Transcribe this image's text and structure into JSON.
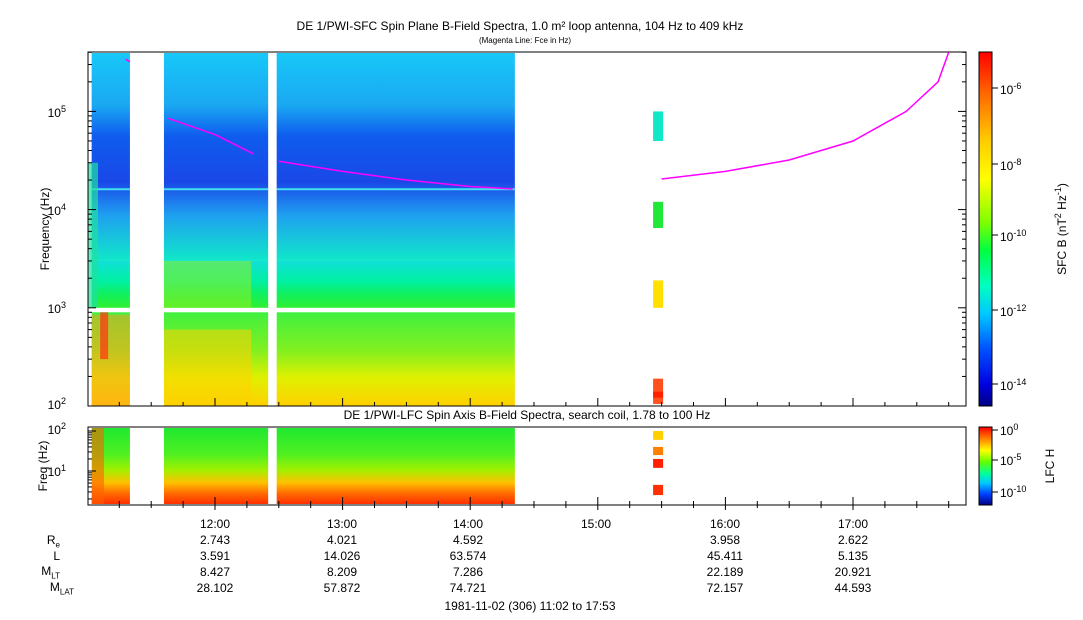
{
  "top_panel": {
    "title": "DE 1/PWI-SFC  Spin Plane B-Field Spectra, 1.0 m² loop antenna, 104 Hz to 409 kHz",
    "subtitle": "(Magenta Line: Fce in Hz)",
    "ylabel": "Frequency (Hz)",
    "yticks": [
      "10",
      "10",
      "10",
      "10"
    ],
    "ytick_exps": [
      "2",
      "3",
      "4",
      "5"
    ],
    "colorbar_label": "SFC B (nT",
    "colorbar_label_sup1": "2",
    "colorbar_label_mid": " Hz",
    "colorbar_label_sup2": "-1",
    "colorbar_label_end": ")",
    "colorbar_ticks": [
      "10",
      "10",
      "10",
      "10",
      "10"
    ],
    "colorbar_tick_exps": [
      "-6",
      "-8",
      "-10",
      "-12",
      "-14"
    ]
  },
  "bottom_panel": {
    "title": "DE 1/PWI-LFC  Spin Axis B-Field Spectra, search coil, 1.78 to 100 Hz",
    "ylabel": "Freq (Hz)",
    "yticks": [
      "10",
      "10"
    ],
    "ytick_exps": [
      "2",
      "1"
    ],
    "colorbar_label": "LFC H",
    "colorbar_ticks": [
      "10",
      "10",
      "10"
    ],
    "colorbar_tick_exps": [
      "0",
      "-5",
      "-10"
    ]
  },
  "time_axis": {
    "ticks": [
      "12:00",
      "13:00",
      "14:00",
      "15:00",
      "16:00",
      "17:00"
    ]
  },
  "ephemeris": {
    "row_labels": [
      {
        "main": "R",
        "sub": "e"
      },
      {
        "main": "L",
        "sub": ""
      },
      {
        "main": "M",
        "sub": "LT"
      },
      {
        "main": "M",
        "sub": "LAT"
      }
    ],
    "columns": [
      {
        "time": "12:00",
        "values": [
          "2.743",
          "3.591",
          "8.427",
          "28.102"
        ]
      },
      {
        "time": "13:00",
        "values": [
          "4.021",
          "14.026",
          "8.209",
          "57.872"
        ]
      },
      {
        "time": "14:00",
        "values": [
          "4.592",
          "63.574",
          "7.286",
          "74.721"
        ]
      },
      {
        "time": "16:00",
        "values": [
          "3.958",
          "45.411",
          "22.189",
          "72.157"
        ]
      },
      {
        "time": "17:00",
        "values": [
          "2.622",
          "5.135",
          "20.921",
          "44.593"
        ]
      }
    ]
  },
  "footer": "1981-11-02 (306) 11:02 to 17:53",
  "chart_data": [
    {
      "type": "heatmap",
      "title": "DE 1/PWI-SFC  Spin Plane B-Field Spectra, 1.0 m² loop antenna, 104 Hz to 409 kHz",
      "ylabel": "Frequency (Hz)",
      "y_scale": "log",
      "ylim": [
        100,
        409000
      ],
      "x_range": [
        "11:02",
        "17:53"
      ],
      "color_scale": "log",
      "color_range": [
        3e-15,
        1e-05
      ],
      "color_label": "SFC B (nT2 Hz-1)",
      "data_gaps": [
        [
          "11:20",
          "11:36"
        ],
        [
          "12:25",
          "12:29"
        ],
        [
          "14:21",
          "15:26"
        ],
        [
          "15:30",
          "17:53"
        ]
      ],
      "intensity_bands": [
        {
          "freq_hz": [
            100,
            150
          ],
          "level": 2e-09
        },
        {
          "freq_hz": [
            150,
            900
          ],
          "level": 3e-11
        },
        {
          "freq_hz": [
            1000,
            3000
          ],
          "level": 1e-11
        },
        {
          "freq_hz": [
            3000,
            10000
          ],
          "level": 5e-12
        },
        {
          "freq_hz": [
            10000,
            50000
          ],
          "level": 5e-13
        },
        {
          "freq_hz": [
            50000,
            409000
          ],
          "level": 3e-12
        }
      ],
      "fce_line": {
        "name": "Fce",
        "color": "#ff00ff",
        "points": [
          {
            "t": "11:18",
            "f": 340000
          },
          {
            "t": "11:38",
            "f": 85000
          },
          {
            "t": "12:00",
            "f": 58000
          },
          {
            "t": "12:18",
            "f": 37000
          },
          {
            "t": "12:30",
            "f": 31000
          },
          {
            "t": "13:00",
            "f": 24500
          },
          {
            "t": "13:30",
            "f": 20000
          },
          {
            "t": "14:00",
            "f": 17200
          },
          {
            "t": "14:20",
            "f": 16200
          },
          {
            "t": "15:30",
            "f": 20500
          },
          {
            "t": "16:00",
            "f": 24500
          },
          {
            "t": "16:30",
            "f": 32000
          },
          {
            "t": "17:00",
            "f": 50000
          },
          {
            "t": "17:25",
            "f": 100000
          },
          {
            "t": "17:40",
            "f": 200000
          },
          {
            "t": "17:45",
            "f": 400000
          }
        ]
      }
    },
    {
      "type": "heatmap",
      "title": "DE 1/PWI-LFC  Spin Axis B-Field Spectra, search coil, 1.78 to 100 Hz",
      "ylabel": "Freq (Hz)",
      "y_scale": "log",
      "ylim": [
        1.78,
        100
      ],
      "x_range": [
        "11:02",
        "17:53"
      ],
      "color_scale": "log",
      "color_range": [
        1e-12,
        1
      ],
      "color_label": "LFC H",
      "intensity_bands": [
        {
          "freq_hz": [
            1.78,
            3.5
          ],
          "level": 0.1
        },
        {
          "freq_hz": [
            3.5,
            6
          ],
          "level": 0.01
        },
        {
          "freq_hz": [
            6,
            20
          ],
          "level": 0.0001
        },
        {
          "freq_hz": [
            20,
            100
          ],
          "level": 1e-06
        }
      ]
    }
  ]
}
